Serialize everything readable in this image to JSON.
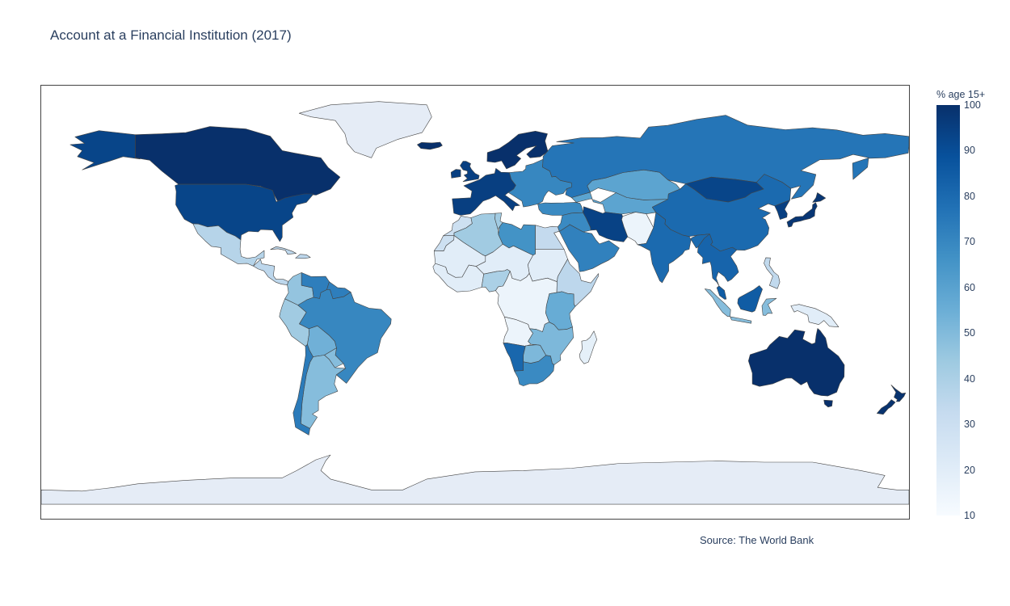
{
  "title": "Account at a Financial Institution (2017)",
  "source": "Source: The World Bank",
  "colorbar": {
    "title": "% age 15+",
    "ticks": [
      "10",
      "20",
      "30",
      "40",
      "50",
      "60",
      "70",
      "80",
      "90",
      "100"
    ],
    "min": 10,
    "max": 100,
    "colorscale": [
      "#f7fbff",
      "#deebf7",
      "#c6dbef",
      "#9ecae1",
      "#6baed6",
      "#4292c6",
      "#2171b5",
      "#08519c",
      "#08306b"
    ]
  },
  "chart_data": {
    "type": "choropleth",
    "projection": "equirectangular",
    "value_label": "% age 15+",
    "no_data_color": "#e5ecf6",
    "regions": [
      {
        "name": "Canada",
        "value": 100
      },
      {
        "name": "United States",
        "value": 93
      },
      {
        "name": "Mexico",
        "value": 37
      },
      {
        "name": "Central America",
        "value": 35
      },
      {
        "name": "Colombia",
        "value": 46
      },
      {
        "name": "Venezuela",
        "value": 73
      },
      {
        "name": "Peru",
        "value": 43
      },
      {
        "name": "Bolivia",
        "value": 54
      },
      {
        "name": "Brazil",
        "value": 70
      },
      {
        "name": "Argentina",
        "value": 49
      },
      {
        "name": "Chile",
        "value": 74
      },
      {
        "name": "Greenland",
        "value": null
      },
      {
        "name": "Antarctica",
        "value": null
      },
      {
        "name": "Western Europe",
        "value": 95
      },
      {
        "name": "Nordic countries",
        "value": 100
      },
      {
        "name": "Eastern Europe",
        "value": 70
      },
      {
        "name": "Russia",
        "value": 76
      },
      {
        "name": "Kazakhstan",
        "value": 59
      },
      {
        "name": "Mongolia",
        "value": 93
      },
      {
        "name": "China",
        "value": 80
      },
      {
        "name": "Japan",
        "value": 98
      },
      {
        "name": "South Korea",
        "value": 95
      },
      {
        "name": "Turkey",
        "value": 69
      },
      {
        "name": "Iran",
        "value": 94
      },
      {
        "name": "Saudi Arabia",
        "value": 72
      },
      {
        "name": "Pakistan",
        "value": 21
      },
      {
        "name": "Afghanistan",
        "value": 15
      },
      {
        "name": "India",
        "value": 80
      },
      {
        "name": "Myanmar",
        "value": 26
      },
      {
        "name": "Thailand",
        "value": 82
      },
      {
        "name": "Malaysia",
        "value": 85
      },
      {
        "name": "Indonesia",
        "value": 49
      },
      {
        "name": "Philippines",
        "value": 34
      },
      {
        "name": "Papua New Guinea",
        "value": 20
      },
      {
        "name": "Australia",
        "value": 100
      },
      {
        "name": "New Zealand",
        "value": 99
      },
      {
        "name": "Morocco",
        "value": 29
      },
      {
        "name": "Algeria",
        "value": 43
      },
      {
        "name": "Libya",
        "value": 66
      },
      {
        "name": "Egypt",
        "value": 33
      },
      {
        "name": "Sahel",
        "value": 20
      },
      {
        "name": "Nigeria",
        "value": 40
      },
      {
        "name": "Ethiopia",
        "value": 35
      },
      {
        "name": "Kenya",
        "value": 56
      },
      {
        "name": "Central Africa",
        "value": 15
      },
      {
        "name": "Namibia",
        "value": 81
      },
      {
        "name": "Botswana",
        "value": 51
      },
      {
        "name": "South Africa",
        "value": 69
      },
      {
        "name": "Madagascar",
        "value": 18
      }
    ]
  }
}
